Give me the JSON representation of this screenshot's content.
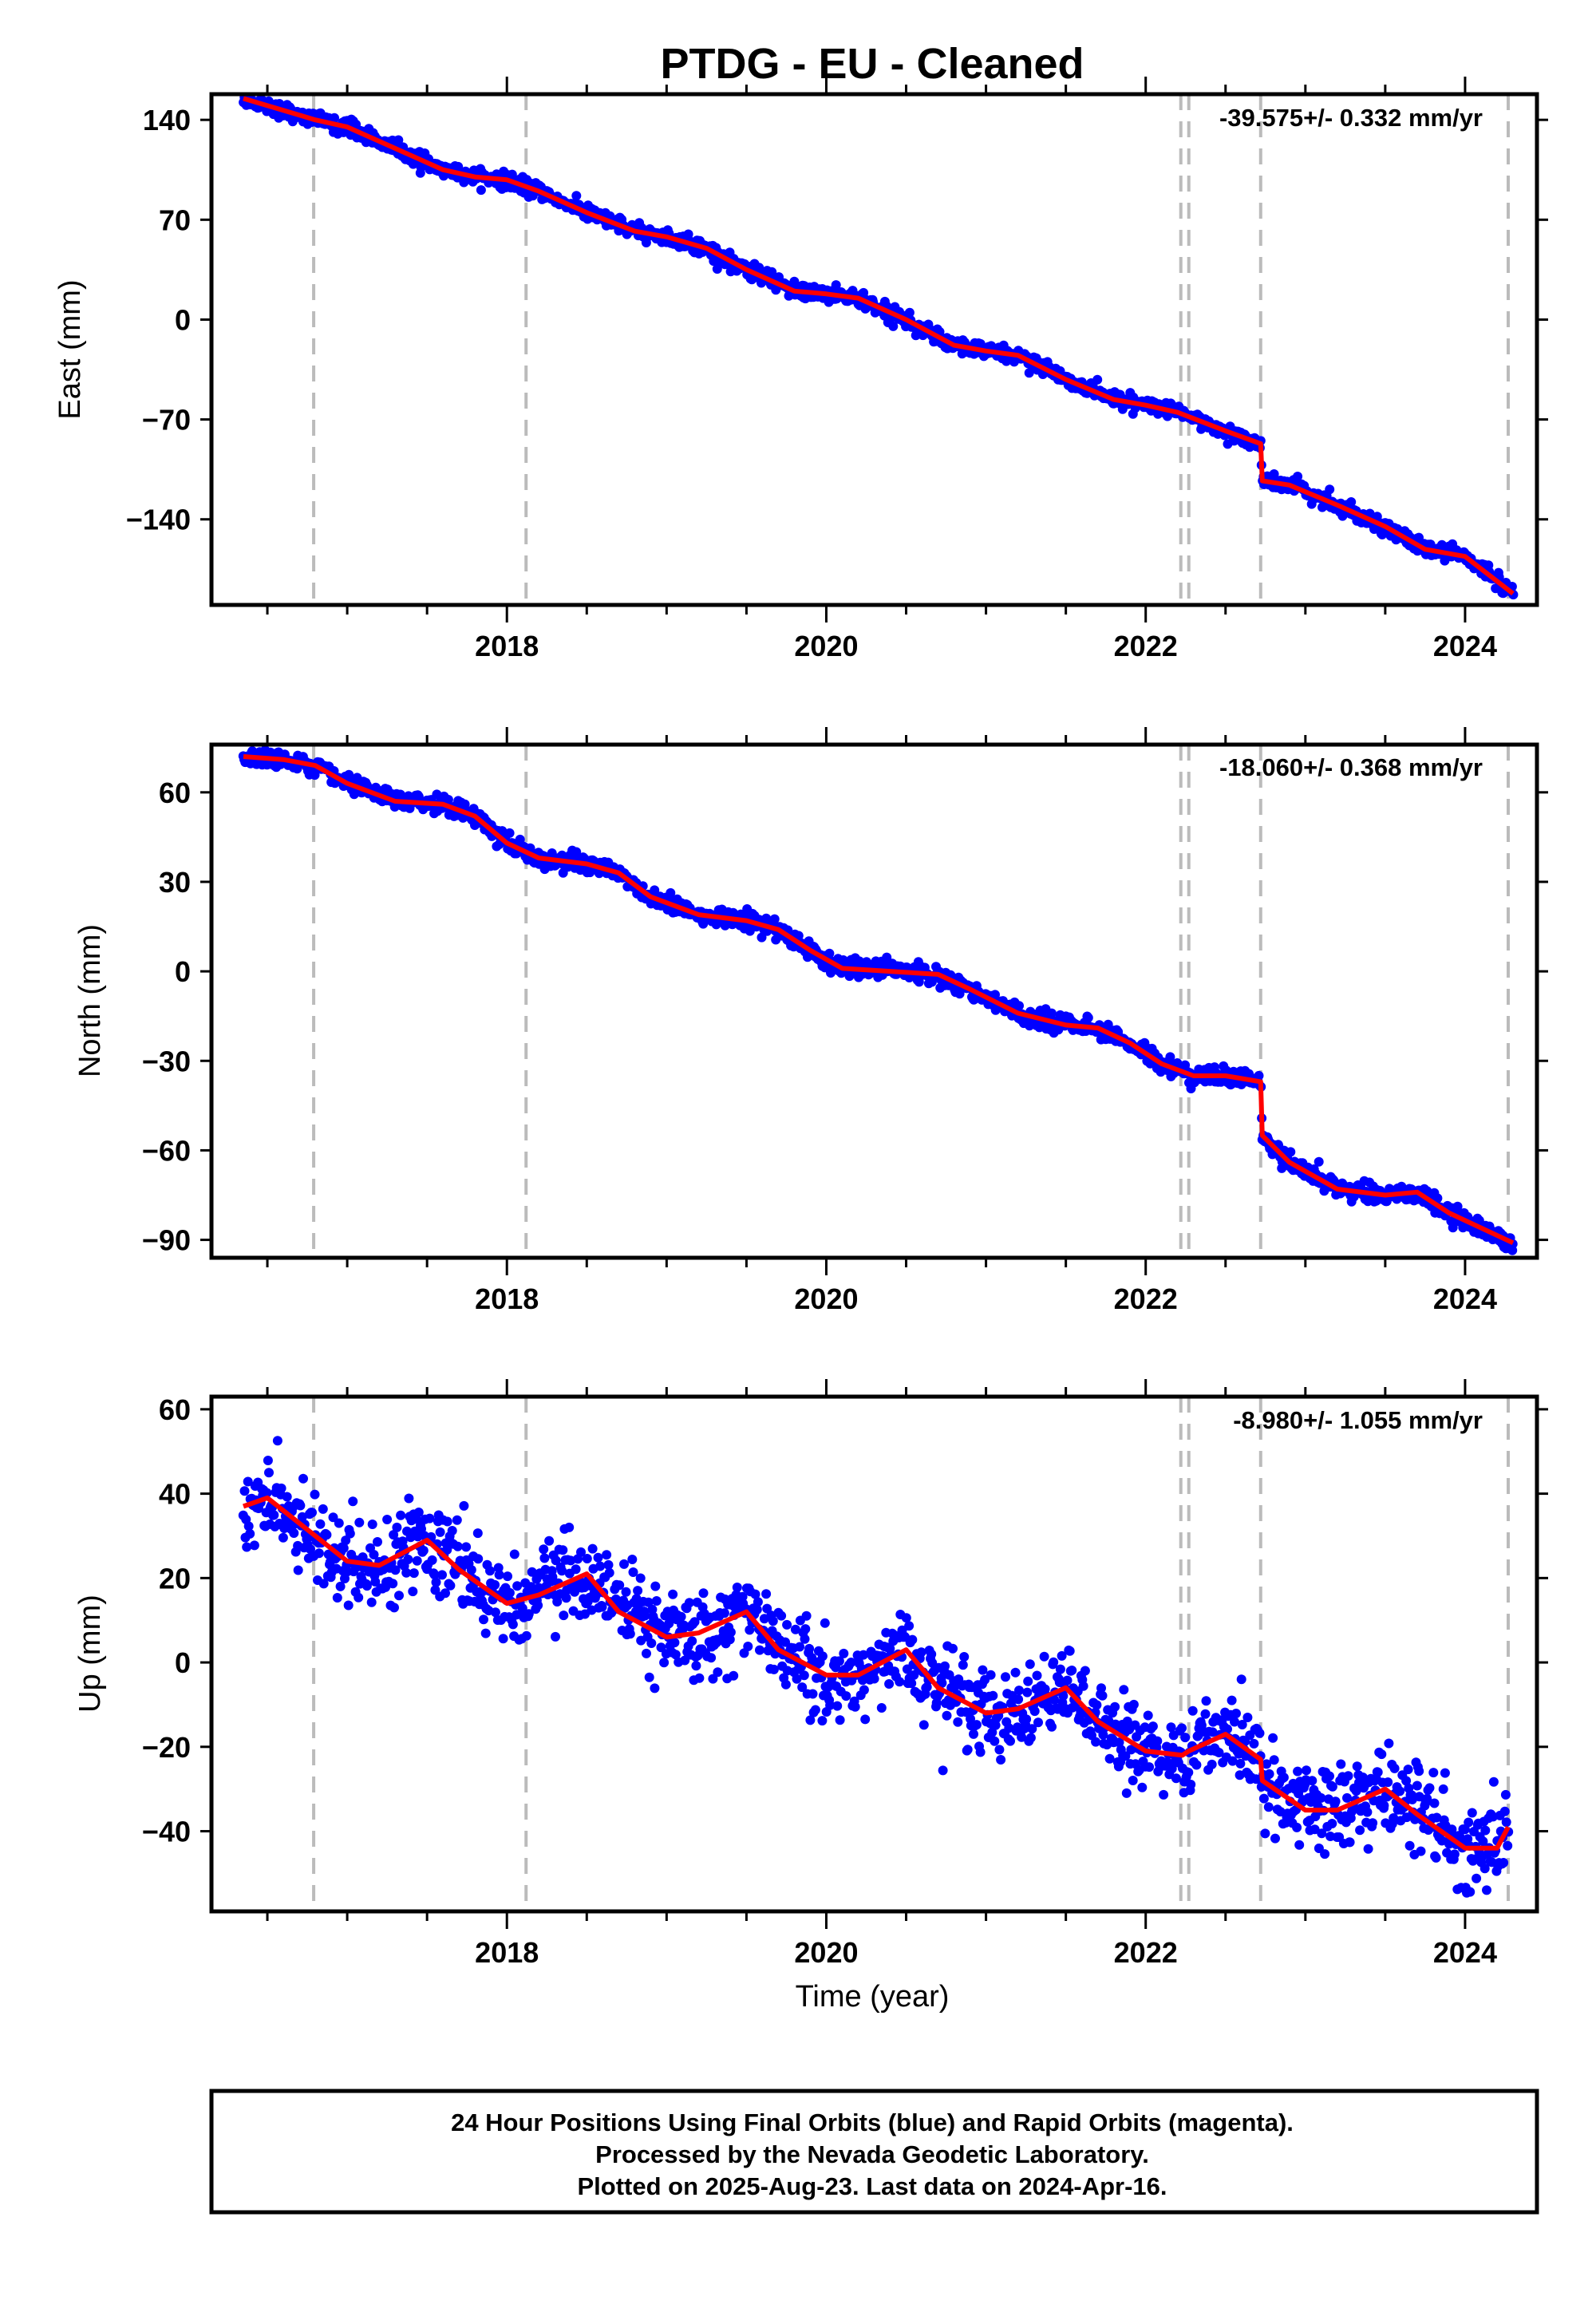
{
  "title": "PTDG  - EU - Cleaned",
  "xlabel": "Time (year)",
  "footer": [
    "24 Hour Positions Using Final Orbits (blue) and Rapid Orbits (magenta).",
    "Processed by the Nevada Geodetic Laboratory.",
    "Plotted on 2025-Aug-23. Last data on 2024-Apr-16."
  ],
  "colors": {
    "data": "#0000ff",
    "model": "#ff0000",
    "event_lines": "#bbbbbb",
    "frame": "#000000"
  },
  "chart_data": [
    {
      "type": "scatter",
      "ylabel": "East (mm)",
      "rate_text": "-39.575+/- 0.332 mm/yr",
      "xlim": [
        2016.15,
        2024.45
      ],
      "ylim": [
        -200,
        158
      ],
      "yticks": [
        -140,
        -70,
        0,
        70,
        140
      ],
      "xticks": [
        2018,
        2020,
        2022,
        2024
      ],
      "event_lines": [
        2016.79,
        2018.12,
        2022.22,
        2022.27,
        2022.72,
        2024.27
      ],
      "model": {
        "x": [
          2016.35,
          2016.8,
          2017.0,
          2017.3,
          2017.6,
          2017.8,
          2018.0,
          2018.2,
          2018.5,
          2018.8,
          2019.0,
          2019.25,
          2019.5,
          2019.8,
          2020.0,
          2020.2,
          2020.5,
          2020.8,
          2021.0,
          2021.2,
          2021.5,
          2021.8,
          2022.0,
          2022.2,
          2022.5,
          2022.72,
          2022.73,
          2022.9,
          2023.2,
          2023.5,
          2023.75,
          2024.0,
          2024.3
        ],
        "y": [
          155,
          140,
          135,
          120,
          105,
          100,
          98,
          90,
          75,
          62,
          58,
          50,
          35,
          20,
          18,
          15,
          0,
          -18,
          -22,
          -25,
          -42,
          -56,
          -60,
          -65,
          -78,
          -87,
          -113,
          -116,
          -130,
          -145,
          -161,
          -166,
          -192
        ]
      },
      "series": [
        {
          "name": "Final Orbits",
          "noise": 2.6,
          "outliers": 0.004,
          "outlier_size": 9
        }
      ]
    },
    {
      "type": "scatter",
      "ylabel": "North (mm)",
      "rate_text": "-18.060+/- 0.368 mm/yr",
      "xlim": [
        2016.15,
        2024.45
      ],
      "ylim": [
        -96,
        76
      ],
      "yticks": [
        -90,
        -60,
        -30,
        0,
        30,
        60
      ],
      "xticks": [
        2018,
        2020,
        2022,
        2024
      ],
      "event_lines": [
        2016.79,
        2018.12,
        2022.22,
        2022.27,
        2022.72,
        2024.27
      ],
      "model": {
        "x": [
          2016.35,
          2016.6,
          2016.8,
          2017.0,
          2017.3,
          2017.6,
          2017.8,
          2018.0,
          2018.2,
          2018.5,
          2018.7,
          2018.9,
          2019.2,
          2019.5,
          2019.7,
          2019.9,
          2020.1,
          2020.4,
          2020.7,
          2020.9,
          2021.2,
          2021.5,
          2021.7,
          2021.9,
          2022.1,
          2022.3,
          2022.5,
          2022.72,
          2022.73,
          2022.9,
          2023.2,
          2023.5,
          2023.7,
          2023.9,
          2024.3
        ],
        "y": [
          72,
          71,
          69,
          63,
          57,
          56,
          52,
          43,
          38,
          36,
          33,
          25,
          19,
          17,
          14,
          7,
          1,
          0,
          -1,
          -6,
          -14,
          -18,
          -19,
          -24,
          -31,
          -35,
          -35,
          -37,
          -55,
          -64,
          -73,
          -75,
          -74,
          -81,
          -91
        ]
      },
      "series": [
        {
          "name": "Final Orbits",
          "noise": 1.5,
          "outliers": 0.003,
          "outlier_size": 8
        }
      ]
    },
    {
      "type": "scatter",
      "ylabel": "Up (mm)",
      "rate_text": "-8.980+/- 1.055 mm/yr",
      "xlim": [
        2016.15,
        2024.45
      ],
      "ylim": [
        -59,
        63
      ],
      "yticks": [
        -40,
        -20,
        0,
        20,
        40,
        60
      ],
      "xticks": [
        2018,
        2020,
        2022,
        2024
      ],
      "event_lines": [
        2016.79,
        2018.12,
        2022.22,
        2022.27,
        2022.72,
        2024.27
      ],
      "model": {
        "x": [
          2016.35,
          2016.5,
          2016.8,
          2017.0,
          2017.2,
          2017.5,
          2017.7,
          2018.0,
          2018.2,
          2018.5,
          2018.7,
          2019.0,
          2019.2,
          2019.5,
          2019.7,
          2020.0,
          2020.2,
          2020.5,
          2020.7,
          2021.0,
          2021.2,
          2021.5,
          2021.7,
          2022.0,
          2022.23,
          2022.27,
          2022.5,
          2022.72,
          2022.73,
          2023.0,
          2023.2,
          2023.5,
          2023.7,
          2024.0,
          2024.2,
          2024.27
        ],
        "y": [
          37,
          39,
          30,
          24,
          23,
          29,
          22,
          14,
          16,
          21,
          12,
          6,
          7,
          12,
          3,
          -3,
          -3,
          3,
          -6,
          -12,
          -11,
          -6,
          -14,
          -21,
          -22,
          -21,
          -17,
          -23,
          -28,
          -35,
          -35,
          -30,
          -36,
          -44,
          -44,
          -39
        ]
      },
      "series": [
        {
          "name": "Final Orbits",
          "noise": 5.0,
          "outliers": 0.012,
          "outlier_size": 20
        }
      ]
    }
  ]
}
